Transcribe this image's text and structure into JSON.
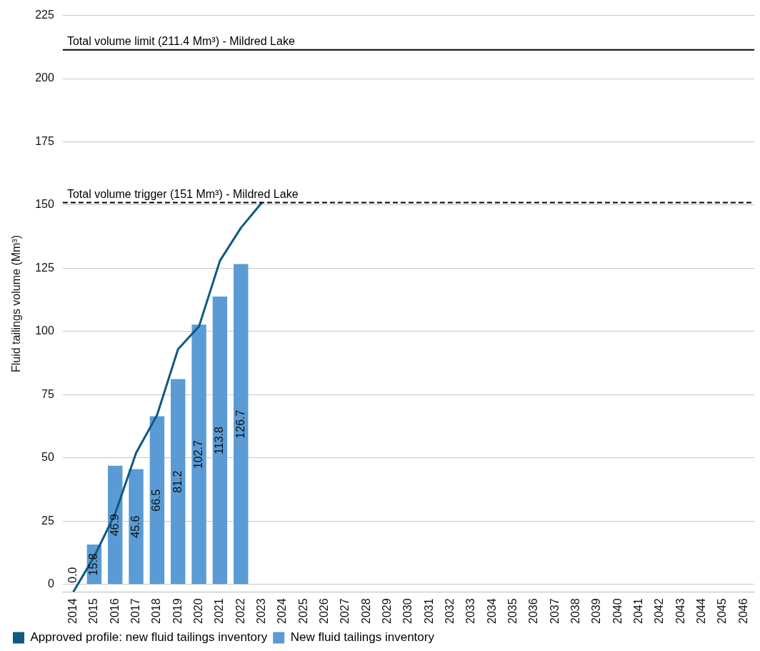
{
  "chart_data": {
    "type": "bar",
    "ylabel": "Fluid tailings volume (Mm³)",
    "categories": [
      "2014",
      "2015",
      "2016",
      "2017",
      "2018",
      "2019",
      "2020",
      "2021",
      "2022",
      "2023",
      "2024",
      "2025",
      "2026",
      "2027",
      "2028",
      "2029",
      "2030",
      "2031",
      "2032",
      "2033",
      "2034",
      "2035",
      "2036",
      "2037",
      "2038",
      "2039",
      "2040",
      "2041",
      "2042",
      "2043",
      "2044",
      "2045",
      "2046"
    ],
    "series": [
      {
        "name": "Approved profile: new fluid tailings inventory",
        "type": "line",
        "color": "#0e5a80",
        "values": [
          -3,
          11,
          28,
          52,
          67,
          93,
          102,
          128,
          141,
          151,
          null,
          null,
          null,
          null,
          null,
          null,
          null,
          null,
          null,
          null,
          null,
          null,
          null,
          null,
          null,
          null,
          null,
          null,
          null,
          null,
          null,
          null,
          null
        ]
      },
      {
        "name": "New fluid tailings inventory",
        "color": "#5b9bd5",
        "values": [
          0.0,
          15.8,
          46.9,
          45.6,
          66.5,
          81.2,
          102.7,
          113.8,
          126.7,
          null,
          null,
          null,
          null,
          null,
          null,
          null,
          null,
          null,
          null,
          null,
          null,
          null,
          null,
          null,
          null,
          null,
          null,
          null,
          null,
          null,
          null,
          null,
          null
        ],
        "value_labels": [
          "0.0",
          "15.8",
          "46.9",
          "45.6",
          "66.5",
          "81.2",
          "102.7",
          "113.8",
          "126.7",
          null,
          null,
          null,
          null,
          null,
          null,
          null,
          null,
          null,
          null,
          null,
          null,
          null,
          null,
          null,
          null,
          null,
          null,
          null,
          null,
          null,
          null,
          null,
          null
        ]
      }
    ],
    "ylim": [
      -3,
      225
    ],
    "yticks": [
      0,
      25,
      50,
      75,
      100,
      125,
      150,
      175,
      200,
      225
    ],
    "ref_lines": [
      {
        "axis": "y",
        "value": 211.4,
        "label": "Total volume limit (211.4 Mm³) - Mildred Lake",
        "color": "#000000",
        "line_style": "solid"
      },
      {
        "axis": "y",
        "value": 151,
        "label": "Total volume trigger (151 Mm³) - Mildred Lake",
        "color": "#000000",
        "line_style": "dashed"
      }
    ],
    "grid": "y",
    "legend": "bottom left",
    "marker": "none"
  }
}
